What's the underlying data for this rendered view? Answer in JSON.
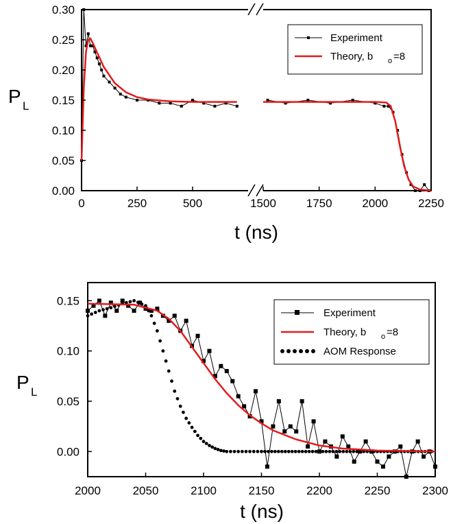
{
  "chart_data": [
    {
      "type": "line",
      "panel": "top",
      "xlabel": "t (ns)",
      "ylabel": "P",
      "ylabel_sub": "L",
      "x_axis_broken": true,
      "x_segments": [
        [
          0,
          750
        ],
        [
          1500,
          2250
        ]
      ],
      "xticks": [
        0,
        250,
        500,
        1500,
        1750,
        2000,
        2250
      ],
      "ylim": [
        0,
        0.3
      ],
      "yticks": [
        "0.00",
        "0.05",
        "0.10",
        "0.15",
        "0.20",
        "0.25",
        "0.30"
      ],
      "legend_position": "top-right",
      "series": [
        {
          "name": "Experiment",
          "style": "black line with small square markers",
          "color": "#000000",
          "x": [
            0,
            10,
            20,
            30,
            40,
            50,
            60,
            70,
            80,
            90,
            100,
            125,
            150,
            175,
            200,
            250,
            300,
            350,
            400,
            450,
            500,
            550,
            600,
            650,
            700,
            1520,
            1600,
            1700,
            1800,
            1900,
            2000,
            2040,
            2060,
            2080,
            2100,
            2120,
            2140,
            2160,
            2180,
            2200,
            2220,
            2240
          ],
          "y": [
            0.05,
            0.3,
            0.24,
            0.26,
            0.24,
            0.24,
            0.23,
            0.22,
            0.21,
            0.2,
            0.19,
            0.18,
            0.17,
            0.16,
            0.155,
            0.15,
            0.15,
            0.145,
            0.145,
            0.14,
            0.15,
            0.145,
            0.14,
            0.145,
            0.14,
            0.15,
            0.145,
            0.15,
            0.145,
            0.15,
            0.145,
            0.14,
            0.14,
            0.13,
            0.1,
            0.06,
            0.03,
            0.01,
            0.0,
            0.0,
            0.01,
            0.0
          ]
        },
        {
          "name": "Theory, b",
          "name_sub": "o",
          "name_suffix": "=8",
          "style": "red solid line",
          "color": "#e31a1c",
          "x": [
            0,
            10,
            20,
            30,
            40,
            50,
            75,
            100,
            150,
            200,
            250,
            300,
            400,
            500,
            600,
            700,
            1500,
            1700,
            1900,
            2000,
            2050,
            2070,
            2090,
            2110,
            2130,
            2150,
            2170,
            2200,
            2250
          ],
          "y": [
            0.05,
            0.17,
            0.23,
            0.25,
            0.252,
            0.245,
            0.225,
            0.205,
            0.178,
            0.163,
            0.155,
            0.151,
            0.148,
            0.147,
            0.147,
            0.147,
            0.147,
            0.147,
            0.147,
            0.147,
            0.146,
            0.14,
            0.115,
            0.075,
            0.04,
            0.018,
            0.007,
            0.002,
            0.0
          ]
        }
      ]
    },
    {
      "type": "line",
      "panel": "bottom",
      "xlabel": "t (ns)",
      "ylabel": "P",
      "ylabel_sub": "L",
      "xlim": [
        2000,
        2300
      ],
      "xticks": [
        2000,
        2050,
        2100,
        2150,
        2200,
        2250,
        2300
      ],
      "ylim": [
        -0.025,
        0.168
      ],
      "yticks": [
        "0.00",
        "0.05",
        "0.10",
        "0.15"
      ],
      "legend_position": "top-right",
      "series": [
        {
          "name": "Experiment",
          "style": "black line with square markers",
          "color": "#000000",
          "x": [
            2000,
            2005,
            2010,
            2015,
            2020,
            2025,
            2030,
            2035,
            2040,
            2045,
            2050,
            2055,
            2060,
            2065,
            2070,
            2075,
            2080,
            2085,
            2090,
            2095,
            2100,
            2105,
            2110,
            2115,
            2120,
            2125,
            2130,
            2135,
            2140,
            2145,
            2150,
            2155,
            2160,
            2165,
            2170,
            2175,
            2180,
            2185,
            2190,
            2195,
            2200,
            2205,
            2210,
            2215,
            2220,
            2225,
            2230,
            2235,
            2240,
            2245,
            2250,
            2255,
            2260,
            2265,
            2270,
            2275,
            2280,
            2285,
            2290,
            2295,
            2300
          ],
          "y": [
            0.14,
            0.145,
            0.15,
            0.135,
            0.148,
            0.14,
            0.15,
            0.145,
            0.14,
            0.148,
            0.142,
            0.14,
            0.142,
            0.135,
            0.13,
            0.135,
            0.12,
            0.13,
            0.105,
            0.115,
            0.09,
            0.1,
            0.075,
            0.085,
            0.08,
            0.07,
            0.055,
            0.045,
            0.035,
            0.06,
            0.03,
            -0.015,
            0.025,
            0.05,
            0.02,
            0.025,
            0.02,
            0.05,
            0.005,
            0.03,
            0.0,
            0.01,
            0.005,
            -0.005,
            0.015,
            0.005,
            -0.01,
            0.0,
            0.01,
            0.0,
            -0.01,
            -0.015,
            -0.005,
            0.0,
            0.005,
            -0.025,
            0.0,
            0.01,
            -0.005,
            0.0,
            -0.015
          ]
        },
        {
          "name": "Theory, b",
          "name_sub": "o",
          "name_suffix": "=8",
          "style": "red solid line",
          "color": "#e31a1c",
          "x": [
            2000,
            2040,
            2060,
            2070,
            2080,
            2090,
            2100,
            2110,
            2120,
            2130,
            2140,
            2150,
            2160,
            2180,
            2200,
            2220,
            2250,
            2300
          ],
          "y": [
            0.147,
            0.146,
            0.14,
            0.132,
            0.12,
            0.104,
            0.088,
            0.072,
            0.058,
            0.046,
            0.036,
            0.028,
            0.021,
            0.012,
            0.006,
            0.003,
            0.001,
            0.0
          ]
        },
        {
          "name": "AOM Response",
          "style": "black dotted",
          "color": "#000000",
          "x": [
            2000,
            2010,
            2020,
            2030,
            2040,
            2050,
            2055,
            2060,
            2065,
            2070,
            2075,
            2080,
            2085,
            2090,
            2095,
            2100,
            2105,
            2110,
            2115,
            2120,
            2130,
            2140,
            2150,
            2200,
            2250,
            2300
          ],
          "y": [
            0.135,
            0.14,
            0.143,
            0.147,
            0.15,
            0.145,
            0.135,
            0.12,
            0.1,
            0.08,
            0.06,
            0.045,
            0.033,
            0.024,
            0.016,
            0.01,
            0.006,
            0.003,
            0.001,
            0.0,
            0.0,
            0.0,
            0.0,
            0.0,
            0.0,
            0.0
          ]
        }
      ]
    }
  ]
}
